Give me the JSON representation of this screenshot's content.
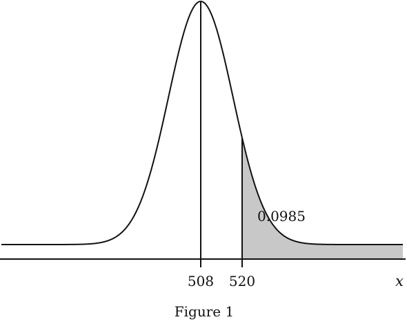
{
  "chart_data": {
    "type": "area",
    "title": "",
    "caption": "Figure 1",
    "xlabel": "x",
    "ylabel": "",
    "distribution": "normal",
    "mean": 508,
    "std_dev": 9.35,
    "x_ticks": [
      {
        "value": 508,
        "label": "508"
      },
      {
        "value": 520,
        "label": "520"
      }
    ],
    "shaded_region": {
      "from": 520,
      "to": "right tail",
      "area_label": "0.0985"
    },
    "grid": false,
    "legend": "none"
  },
  "colors": {
    "curve": "#111111",
    "shade": "#c8c8c8",
    "axis": "#111111"
  }
}
